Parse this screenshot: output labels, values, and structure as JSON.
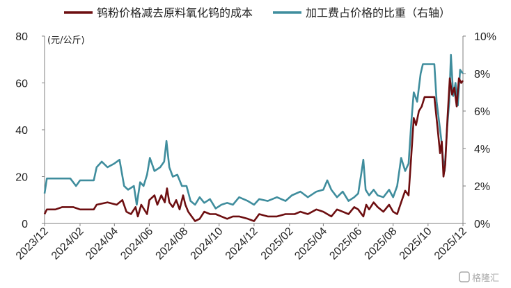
{
  "chart_data": {
    "type": "line",
    "unit_label": "(元/公斤)",
    "legend_position": "top",
    "grid": false,
    "colors": {
      "cost": "#6d0e10",
      "ratio": "#3f8d9d",
      "axis": "#7f7f7f"
    },
    "y_left": {
      "min": 0,
      "max": 80,
      "ticks": [
        "0",
        "20",
        "40",
        "60",
        "80"
      ]
    },
    "y_right": {
      "min": 0,
      "max": 10,
      "ticks": [
        "0%",
        "2%",
        "4%",
        "6%",
        "8%",
        "10%"
      ]
    },
    "x_axis": {
      "min": "2023-12-01",
      "max": "2025-12-01",
      "ticks": [
        {
          "date": "2023-12-01",
          "label": "2023/12"
        },
        {
          "date": "2024-02-01",
          "label": "2024/02"
        },
        {
          "date": "2024-04-01",
          "label": "2024/04"
        },
        {
          "date": "2024-06-01",
          "label": "2024/06"
        },
        {
          "date": "2024-08-01",
          "label": "2024/08"
        },
        {
          "date": "2024-10-01",
          "label": "2024/10"
        },
        {
          "date": "2024-12-01",
          "label": "2024/12"
        },
        {
          "date": "2025-02-01",
          "label": "2025/02"
        },
        {
          "date": "2025-04-01",
          "label": "2025/04"
        },
        {
          "date": "2025-06-01",
          "label": "2025/06"
        },
        {
          "date": "2025-08-01",
          "label": "2025/08"
        },
        {
          "date": "2025-10-01",
          "label": "2025/10"
        },
        {
          "date": "2025-12-01",
          "label": "2025/12"
        }
      ]
    },
    "series": [
      {
        "name": "钨粉价格减去原料氧化钨的成本",
        "axis": "left",
        "color": "#6d0e10",
        "points": [
          [
            "2023-12-01",
            4
          ],
          [
            "2023-12-05",
            6
          ],
          [
            "2023-12-20",
            6
          ],
          [
            "2024-01-01",
            7
          ],
          [
            "2024-01-20",
            7
          ],
          [
            "2024-02-01",
            6
          ],
          [
            "2024-02-25",
            6
          ],
          [
            "2024-03-01",
            8
          ],
          [
            "2024-03-20",
            9
          ],
          [
            "2024-04-05",
            8
          ],
          [
            "2024-04-15",
            10
          ],
          [
            "2024-04-22",
            5
          ],
          [
            "2024-04-30",
            4
          ],
          [
            "2024-05-08",
            7
          ],
          [
            "2024-05-12",
            3
          ],
          [
            "2024-05-18",
            8
          ],
          [
            "2024-05-28",
            4
          ],
          [
            "2024-06-01",
            10
          ],
          [
            "2024-06-10",
            12
          ],
          [
            "2024-06-15",
            8
          ],
          [
            "2024-06-22",
            12
          ],
          [
            "2024-06-28",
            9
          ],
          [
            "2024-07-02",
            15
          ],
          [
            "2024-07-06",
            9
          ],
          [
            "2024-07-12",
            7
          ],
          [
            "2024-07-18",
            10
          ],
          [
            "2024-07-24",
            6
          ],
          [
            "2024-07-30",
            12
          ],
          [
            "2024-08-03",
            8
          ],
          [
            "2024-08-08",
            5
          ],
          [
            "2024-08-14",
            3
          ],
          [
            "2024-08-20",
            1
          ],
          [
            "2024-08-28",
            2
          ],
          [
            "2024-09-05",
            5
          ],
          [
            "2024-09-15",
            4
          ],
          [
            "2024-09-25",
            4
          ],
          [
            "2024-10-05",
            3
          ],
          [
            "2024-10-15",
            2
          ],
          [
            "2024-10-25",
            3
          ],
          [
            "2024-11-05",
            3
          ],
          [
            "2024-11-20",
            2
          ],
          [
            "2024-12-01",
            1
          ],
          [
            "2024-12-10",
            4
          ],
          [
            "2024-12-25",
            3
          ],
          [
            "2025-01-10",
            3
          ],
          [
            "2025-01-25",
            4
          ],
          [
            "2025-02-10",
            4
          ],
          [
            "2025-02-20",
            5
          ],
          [
            "2025-03-05",
            4
          ],
          [
            "2025-03-20",
            6
          ],
          [
            "2025-04-01",
            5
          ],
          [
            "2025-04-15",
            3
          ],
          [
            "2025-04-25",
            6
          ],
          [
            "2025-05-05",
            5
          ],
          [
            "2025-05-15",
            4
          ],
          [
            "2025-05-25",
            7
          ],
          [
            "2025-06-01",
            6
          ],
          [
            "2025-06-10",
            3
          ],
          [
            "2025-06-15",
            8
          ],
          [
            "2025-06-20",
            6
          ],
          [
            "2025-06-28",
            9
          ],
          [
            "2025-07-05",
            7
          ],
          [
            "2025-07-15",
            5
          ],
          [
            "2025-07-25",
            8
          ],
          [
            "2025-08-01",
            5
          ],
          [
            "2025-08-08",
            4
          ],
          [
            "2025-08-15",
            9
          ],
          [
            "2025-08-22",
            14
          ],
          [
            "2025-08-28",
            12
          ],
          [
            "2025-09-02",
            30
          ],
          [
            "2025-09-06",
            45
          ],
          [
            "2025-09-10",
            42
          ],
          [
            "2025-09-15",
            48
          ],
          [
            "2025-09-20",
            50
          ],
          [
            "2025-09-25",
            54
          ],
          [
            "2025-10-05",
            54
          ],
          [
            "2025-10-12",
            54
          ],
          [
            "2025-10-18",
            40
          ],
          [
            "2025-10-22",
            30
          ],
          [
            "2025-10-25",
            35
          ],
          [
            "2025-10-28",
            20
          ],
          [
            "2025-10-31",
            25
          ],
          [
            "2025-11-04",
            45
          ],
          [
            "2025-11-08",
            62
          ],
          [
            "2025-11-12",
            55
          ],
          [
            "2025-11-16",
            58
          ],
          [
            "2025-11-20",
            50
          ],
          [
            "2025-11-24",
            62
          ],
          [
            "2025-11-28",
            60
          ],
          [
            "2025-12-01",
            61
          ]
        ]
      },
      {
        "name": "加工费占价格的比重（右轴）",
        "axis": "right",
        "color": "#3f8d9d",
        "points": [
          [
            "2023-12-01",
            1.6
          ],
          [
            "2023-12-05",
            2.4
          ],
          [
            "2024-01-15",
            2.4
          ],
          [
            "2024-01-25",
            2.0
          ],
          [
            "2024-02-01",
            2.3
          ],
          [
            "2024-02-25",
            2.3
          ],
          [
            "2024-03-01",
            3.0
          ],
          [
            "2024-03-10",
            3.3
          ],
          [
            "2024-03-20",
            3.0
          ],
          [
            "2024-04-01",
            3.2
          ],
          [
            "2024-04-10",
            3.4
          ],
          [
            "2024-04-18",
            2.0
          ],
          [
            "2024-04-25",
            1.8
          ],
          [
            "2024-05-05",
            2.0
          ],
          [
            "2024-05-10",
            1.0
          ],
          [
            "2024-05-16",
            2.2
          ],
          [
            "2024-05-22",
            2.0
          ],
          [
            "2024-05-28",
            2.6
          ],
          [
            "2024-06-02",
            3.5
          ],
          [
            "2024-06-10",
            2.8
          ],
          [
            "2024-06-20",
            3.0
          ],
          [
            "2024-06-27",
            3.3
          ],
          [
            "2024-07-01",
            4.4
          ],
          [
            "2024-07-06",
            3.0
          ],
          [
            "2024-07-12",
            2.5
          ],
          [
            "2024-07-20",
            2.6
          ],
          [
            "2024-07-28",
            2.0
          ],
          [
            "2024-08-05",
            2.0
          ],
          [
            "2024-08-12",
            1.2
          ],
          [
            "2024-08-20",
            1.0
          ],
          [
            "2024-08-28",
            1.4
          ],
          [
            "2024-09-05",
            1.1
          ],
          [
            "2024-09-15",
            1.3
          ],
          [
            "2024-09-25",
            0.8
          ],
          [
            "2024-10-05",
            1.0
          ],
          [
            "2024-10-15",
            1.1
          ],
          [
            "2024-10-25",
            1.0
          ],
          [
            "2024-11-05",
            1.4
          ],
          [
            "2024-11-20",
            1.2
          ],
          [
            "2024-12-01",
            1.0
          ],
          [
            "2024-12-10",
            1.3
          ],
          [
            "2024-12-25",
            1.2
          ],
          [
            "2025-01-10",
            1.4
          ],
          [
            "2025-01-25",
            1.2
          ],
          [
            "2025-02-05",
            1.5
          ],
          [
            "2025-02-20",
            1.7
          ],
          [
            "2025-03-05",
            1.4
          ],
          [
            "2025-03-20",
            1.7
          ],
          [
            "2025-04-01",
            1.8
          ],
          [
            "2025-04-08",
            2.3
          ],
          [
            "2025-04-15",
            1.8
          ],
          [
            "2025-04-25",
            1.4
          ],
          [
            "2025-05-05",
            1.7
          ],
          [
            "2025-05-15",
            1.2
          ],
          [
            "2025-05-25",
            1.4
          ],
          [
            "2025-06-01",
            1.6
          ],
          [
            "2025-06-06",
            2.6
          ],
          [
            "2025-06-10",
            3.4
          ],
          [
            "2025-06-14",
            1.8
          ],
          [
            "2025-06-20",
            1.5
          ],
          [
            "2025-06-28",
            1.8
          ],
          [
            "2025-07-05",
            1.5
          ],
          [
            "2025-07-15",
            1.4
          ],
          [
            "2025-07-25",
            1.8
          ],
          [
            "2025-08-01",
            1.4
          ],
          [
            "2025-08-08",
            2.0
          ],
          [
            "2025-08-15",
            3.5
          ],
          [
            "2025-08-22",
            2.8
          ],
          [
            "2025-08-28",
            3.2
          ],
          [
            "2025-09-02",
            5.5
          ],
          [
            "2025-09-06",
            7.0
          ],
          [
            "2025-09-12",
            6.5
          ],
          [
            "2025-09-18",
            8.0
          ],
          [
            "2025-09-22",
            8.5
          ],
          [
            "2025-10-05",
            8.5
          ],
          [
            "2025-10-12",
            8.5
          ],
          [
            "2025-10-16",
            6.5
          ],
          [
            "2025-10-20",
            5.5
          ],
          [
            "2025-10-24",
            4.5
          ],
          [
            "2025-10-27",
            3.5
          ],
          [
            "2025-10-30",
            2.8
          ],
          [
            "2025-11-03",
            5.0
          ],
          [
            "2025-11-07",
            6.5
          ],
          [
            "2025-11-10",
            9.0
          ],
          [
            "2025-11-14",
            6.8
          ],
          [
            "2025-11-18",
            7.5
          ],
          [
            "2025-11-22",
            6.3
          ],
          [
            "2025-11-26",
            8.2
          ],
          [
            "2025-12-01",
            8.0
          ]
        ]
      }
    ]
  },
  "watermark": {
    "text": "格隆汇",
    "icon": "gelonghui-logo-icon"
  }
}
